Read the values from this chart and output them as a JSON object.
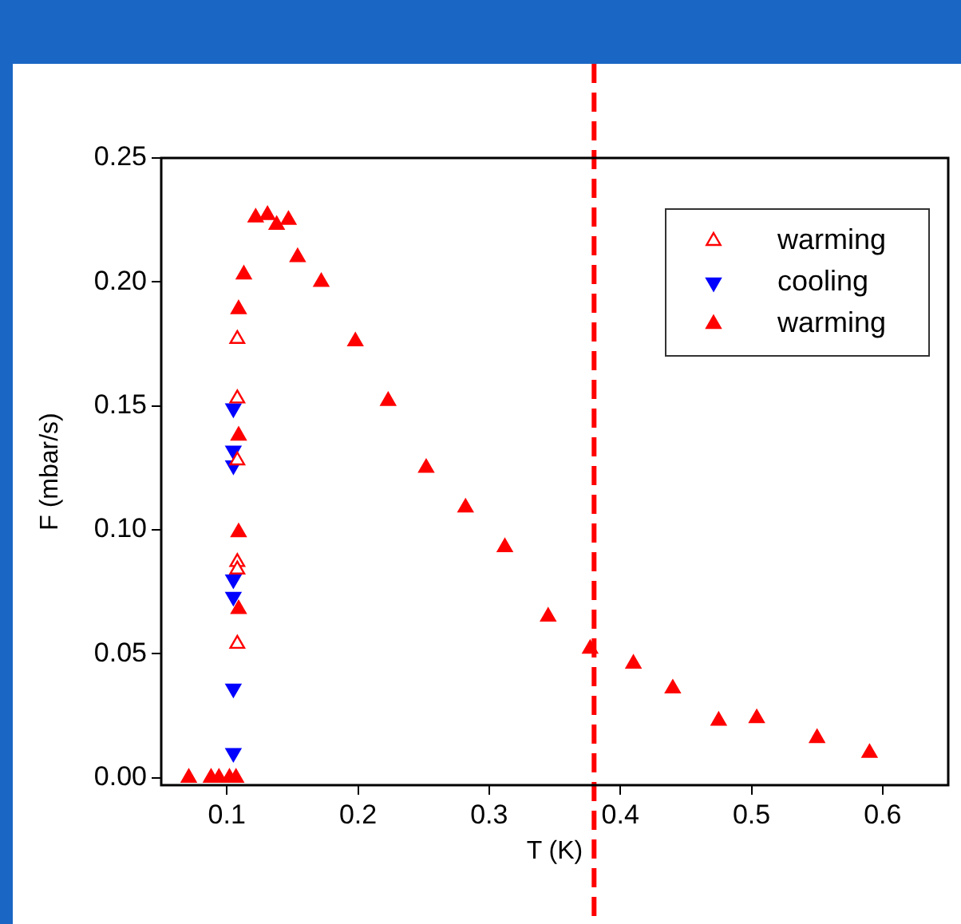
{
  "chart_data": {
    "type": "scatter",
    "xlabel": "T (K)",
    "ylabel": "F (mbar/s)",
    "xlim": [
      0.05,
      0.65
    ],
    "xticks": [
      {
        "value": 0.1,
        "label": "0.1"
      },
      {
        "value": 0.2,
        "label": "0.2"
      },
      {
        "value": 0.3,
        "label": "0.3"
      },
      {
        "value": 0.4,
        "label": "0.4"
      },
      {
        "value": 0.5,
        "label": "0.5"
      },
      {
        "value": 0.6,
        "label": "0.6"
      }
    ],
    "ylim": [
      -0.003,
      0.25
    ],
    "yticks": [
      {
        "value": 0,
        "label": "0.00"
      },
      {
        "value": 0.05,
        "label": "0.05"
      },
      {
        "value": 0.1,
        "label": "0.10"
      },
      {
        "value": 0.15,
        "label": "0.15"
      },
      {
        "value": 0.2,
        "label": "0.20"
      },
      {
        "value": 0.25,
        "label": "0.25"
      }
    ],
    "grid": false,
    "legend": "top right",
    "marker": "triangle",
    "ref_lines": [
      {
        "axis": "x",
        "value": 0.38,
        "color": "#ff0000",
        "line_style": "dashed"
      }
    ],
    "series": [
      {
        "name": "warming",
        "color": "#ff0000",
        "x": [
          0.108,
          0.108,
          0.108,
          0.108,
          0.108,
          0.108
        ],
        "values": [
          0.177,
          0.153,
          0.128,
          0.087,
          0.084,
          0.054
        ]
      },
      {
        "name": "cooling",
        "color": "#0000ff",
        "x": [
          0.105,
          0.105,
          0.105,
          0.105,
          0.105,
          0.105,
          0.105
        ],
        "values": [
          0.149,
          0.132,
          0.126,
          0.08,
          0.073,
          0.036,
          0.01
        ]
      },
      {
        "name": "warming",
        "color": "#ff0000",
        "x": [
          0.071,
          0.088,
          0.094,
          0.102,
          0.107,
          0.109,
          0.109,
          0.109,
          0.109,
          0.113,
          0.122,
          0.131,
          0.138,
          0.147,
          0.154,
          0.172,
          0.198,
          0.223,
          0.252,
          0.282,
          0.312,
          0.345,
          0.377,
          0.41,
          0.44,
          0.475,
          0.504,
          0.55,
          0.59
        ],
        "values": [
          0,
          0,
          0,
          0,
          0,
          0.068,
          0.099,
          0.138,
          0.189,
          0.203,
          0.226,
          0.227,
          0.223,
          0.225,
          0.21,
          0.2,
          0.176,
          0.152,
          0.125,
          0.109,
          0.093,
          0.065,
          0.052,
          0.046,
          0.036,
          0.023,
          0.024,
          0.016,
          0.01
        ]
      }
    ]
  }
}
